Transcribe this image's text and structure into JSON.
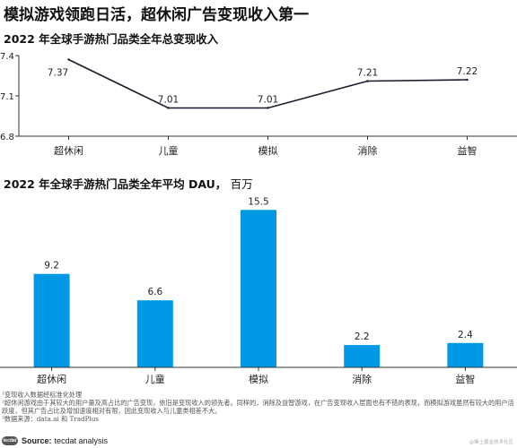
{
  "title": "模拟游戏领跑日活，超休闲广告变现收入第一",
  "chart_data": [
    {
      "type": "line",
      "title": "2022 年全球手游热门品类全年总变现收入",
      "categories": [
        "超休闲",
        "儿童",
        "模拟",
        "消除",
        "益智"
      ],
      "values": [
        7.37,
        7.01,
        7.01,
        7.21,
        7.22
      ],
      "labels": [
        "7.37",
        "7.01",
        "7.01",
        "7.21",
        "7.22"
      ],
      "ylim": [
        6.8,
        7.4
      ],
      "yticks": [
        "6.8",
        "7.1",
        "7.4"
      ],
      "grid": false,
      "line_color": "#1a1a2e"
    },
    {
      "type": "bar",
      "title": "2022 年全球手游热门品类全年平均 DAU，",
      "unit": "百万",
      "categories": [
        "超休闲",
        "儿童",
        "模拟",
        "消除",
        "益智"
      ],
      "values": [
        9.2,
        6.6,
        15.5,
        2.2,
        2.4
      ],
      "labels": [
        "9.2",
        "6.6",
        "15.5",
        "2.2",
        "2.4"
      ],
      "ylim": [
        0,
        17.2
      ],
      "bar_color": "#0099e6"
    }
  ],
  "notes": {
    "n1": "¹变现收入数据经标准化处理",
    "n2": "²超休闲游戏由于其较大的用户量及高占比的广告变现，依旧是变现收入的领先者。同样的，消除及益智游戏，在广告变现收入层面也有不错的表现，而模拟游戏虽然有较大的用户活跃度，但其广告占比及增加速度相对有限，因此变现收入与儿童类相差不大。",
    "n3": "³数据来源：data.ai 和 TradPlus"
  },
  "source": {
    "logo_text": "tecdat",
    "label": "Source:",
    "text": "tecdat analysis"
  },
  "watermark": "@稀土掘金技术社区"
}
